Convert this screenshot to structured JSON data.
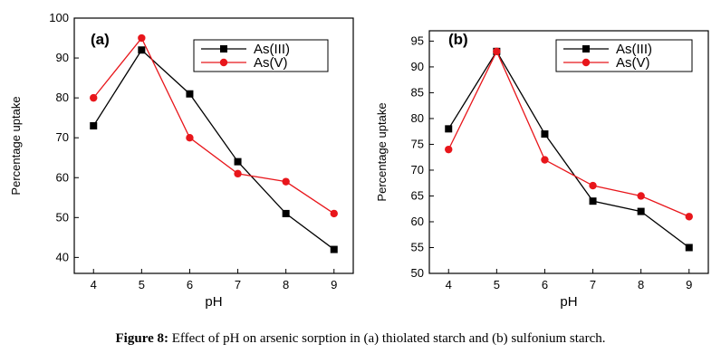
{
  "caption": {
    "label": "Figure 8:",
    "text": " Effect of pH on arsenic sorption in (a) thiolated starch and (b) sulfonium starch."
  },
  "colors": {
    "series1": "#000000",
    "series2": "#e8161b",
    "axis": "#000000"
  },
  "chart_data": [
    {
      "type": "line",
      "panel_label": "(a)",
      "xlabel": "pH",
      "ylabel": "Percentage uptake",
      "x": [
        4,
        5,
        6,
        7,
        8,
        9
      ],
      "xlim": [
        3.6,
        9.4
      ],
      "ylim": [
        36,
        100
      ],
      "yticks": [
        40,
        50,
        60,
        70,
        80,
        90,
        100
      ],
      "grid": false,
      "legend": "top-right",
      "series": [
        {
          "name": "As(III)",
          "marker": "square",
          "values": [
            73,
            92,
            81,
            64,
            51,
            42
          ]
        },
        {
          "name": "As(V)",
          "marker": "circle",
          "values": [
            80,
            95,
            70,
            61,
            59,
            51
          ]
        }
      ]
    },
    {
      "type": "line",
      "panel_label": "(b)",
      "xlabel": "pH",
      "ylabel": "Percentage uptake",
      "x": [
        4,
        5,
        6,
        7,
        8,
        9
      ],
      "xlim": [
        3.6,
        9.4
      ],
      "ylim": [
        50,
        97
      ],
      "yticks": [
        50,
        55,
        60,
        65,
        70,
        75,
        80,
        85,
        90,
        95
      ],
      "grid": false,
      "legend": "top-right",
      "series": [
        {
          "name": "As(III)",
          "marker": "square",
          "values": [
            78,
            93,
            77,
            64,
            62,
            55
          ]
        },
        {
          "name": "As(V)",
          "marker": "circle",
          "values": [
            74,
            93,
            72,
            67,
            65,
            61
          ]
        }
      ]
    }
  ]
}
